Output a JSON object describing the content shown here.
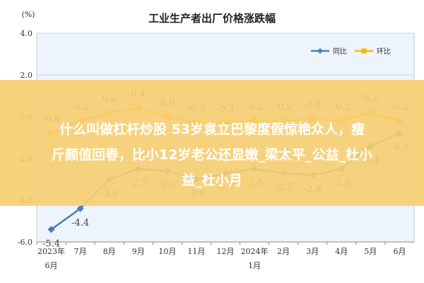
{
  "chart_data": {
    "type": "line",
    "title": "工业生产者出厂价格涨跌幅",
    "ylabel": "(%)",
    "ylim": [
      -6.0,
      4.0
    ],
    "yticks": [
      "4.0",
      "2.0",
      "0.0",
      "-2.0",
      "-4.0",
      "-6.0"
    ],
    "grid": true,
    "legend_position": "top-right",
    "categories": [
      "2023年\n6月",
      "7月",
      "8月",
      "9月",
      "10月",
      "11月",
      "12月",
      "2024年\n1月",
      "2月",
      "3月",
      "4月",
      "5月",
      "6月"
    ],
    "series": [
      {
        "name": "同比",
        "color": "#4a7ebb",
        "values": [
          -5.4,
          -4.4,
          -3.0,
          -2.5,
          -2.6,
          -3.0,
          -2.7,
          -2.5,
          -2.7,
          -2.8,
          -2.5,
          -1.4,
          -0.8
        ],
        "labels": [
          "-5.4",
          "-4.4",
          "-3.0",
          "-2.5",
          "-2.6",
          "-3.0",
          "-2.7",
          "-2.5",
          "-2.7",
          "-2.8",
          "-2.5",
          "-1.4",
          "-0.8"
        ]
      },
      {
        "name": "环比",
        "color": "#f5b800",
        "values": [
          -0.8,
          -0.2,
          0.2,
          0.4,
          0.0,
          -0.3,
          -0.3,
          -0.2,
          -0.2,
          -0.1,
          -0.2,
          0.2,
          -0.2
        ],
        "labels": [
          "-0.8",
          "-0.2",
          "0.2",
          "0.4",
          "0.0",
          "-0.3",
          "-0.3",
          "-0.2",
          "-0.2",
          "-0.1",
          "-0.2",
          "0.2",
          "-0.2"
        ]
      }
    ]
  },
  "overlay": {
    "line1": "什么叫做杠杆炒股 53岁袁立巴黎度假惊艳众人，瘦",
    "line2": "斤颜值回春，比小12岁老公还显嫩_梁太平_公益_杜小",
    "line3": "益_杜小月"
  }
}
